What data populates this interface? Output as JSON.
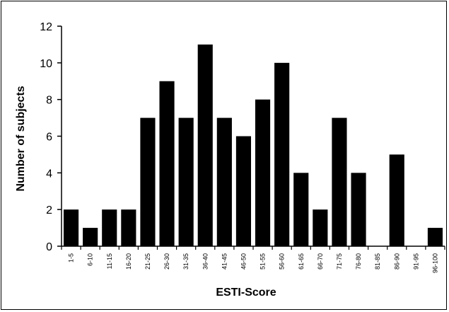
{
  "chart_data": {
    "type": "bar",
    "title": "",
    "xlabel": "ESTI-Score",
    "ylabel": "Number of subjects",
    "categories": [
      "1-5",
      "6-10",
      "11-15",
      "16-20",
      "21-25",
      "26-30",
      "31-35",
      "36-40",
      "41-45",
      "46-50",
      "51-55",
      "56-60",
      "61-65",
      "66-70",
      "71-75",
      "76-80",
      "81-85",
      "86-90",
      "91-95",
      "96-100"
    ],
    "values": [
      2,
      1,
      2,
      2,
      7,
      9,
      7,
      11,
      7,
      6,
      8,
      10,
      4,
      2,
      7,
      4,
      0,
      5,
      0,
      1
    ],
    "ylim": [
      0,
      12
    ],
    "yticks": [
      0,
      2,
      4,
      6,
      8,
      10,
      12
    ],
    "grid": false,
    "legend": "none",
    "colors": {
      "bar": "#000000",
      "background": "#ffffff",
      "axis": "#000000"
    }
  }
}
